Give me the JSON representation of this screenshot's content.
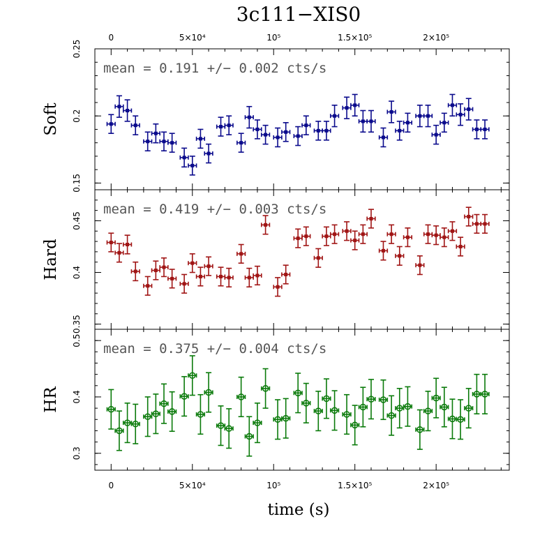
{
  "chart_data": {
    "type": "scatter",
    "title": "3c111−XIS0",
    "xlabel": "time (s)",
    "xlim": [
      -10000,
      245000
    ],
    "x_ticks": [
      {
        "value": 0,
        "label": "0"
      },
      {
        "value": 50000,
        "label": "5×10⁴"
      },
      {
        "value": 100000,
        "label": "10⁵"
      },
      {
        "value": 150000,
        "label": "1.5×10⁵"
      },
      {
        "value": 200000,
        "label": "2×10⁵"
      }
    ],
    "x_half_width": 2500,
    "x": [
      0,
      5000,
      10000,
      15000,
      22500,
      27500,
      32500,
      37500,
      45000,
      50000,
      55000,
      60000,
      67500,
      72500,
      80000,
      85000,
      90000,
      95000,
      102500,
      107500,
      115000,
      120000,
      127500,
      132500,
      137500,
      145000,
      150000,
      155000,
      160000,
      167500,
      172500,
      177500,
      182500,
      190000,
      195000,
      200000,
      205000,
      210000,
      215000,
      220000,
      225000,
      230000
    ],
    "panels": [
      {
        "ylabel": "Soft",
        "ylim": [
          0.145,
          0.25
        ],
        "yticks": [
          0.15,
          0.2,
          0.25
        ],
        "ytick_labels": [
          "0.15",
          "0.2",
          "0.25"
        ],
        "mean_text": "mean = 0.191 +/− 0.002 cts/s",
        "color": "#0a0a8c",
        "marker": "square",
        "values": [
          0.194,
          0.207,
          0.204,
          0.193,
          0.181,
          0.187,
          0.181,
          0.18,
          0.169,
          0.163,
          0.183,
          0.172,
          0.192,
          0.193,
          0.18,
          0.199,
          0.19,
          0.186,
          0.184,
          0.188,
          0.185,
          0.193,
          0.189,
          0.189,
          0.2,
          0.206,
          0.208,
          0.196,
          0.196,
          0.184,
          0.203,
          0.189,
          0.195,
          0.2,
          0.2,
          0.186,
          0.195,
          0.208,
          0.201,
          0.205,
          0.19,
          0.19
        ],
        "errors": [
          0.007,
          0.008,
          0.008,
          0.007,
          0.007,
          0.007,
          0.007,
          0.007,
          0.007,
          0.007,
          0.007,
          0.007,
          0.007,
          0.007,
          0.007,
          0.008,
          0.007,
          0.007,
          0.007,
          0.007,
          0.007,
          0.007,
          0.007,
          0.007,
          0.008,
          0.008,
          0.008,
          0.008,
          0.008,
          0.007,
          0.008,
          0.007,
          0.007,
          0.008,
          0.008,
          0.007,
          0.007,
          0.008,
          0.008,
          0.008,
          0.007,
          0.007
        ]
      },
      {
        "ylabel": "Hard",
        "ylim": [
          0.345,
          0.48
        ],
        "yticks": [
          0.35,
          0.4,
          0.45
        ],
        "ytick_labels": [
          "0.35",
          "0.4",
          "0.45"
        ],
        "mean_text": "mean = 0.419 +/− 0.003 cts/s",
        "color": "#a01414",
        "marker": "square",
        "values": [
          0.429,
          0.419,
          0.427,
          0.401,
          0.387,
          0.402,
          0.405,
          0.394,
          0.389,
          0.409,
          0.396,
          0.406,
          0.396,
          0.395,
          0.418,
          0.395,
          0.397,
          0.446,
          0.386,
          0.398,
          0.433,
          0.435,
          0.414,
          0.435,
          0.437,
          0.44,
          0.431,
          0.437,
          0.452,
          0.421,
          0.437,
          0.416,
          0.434,
          0.407,
          0.437,
          0.436,
          0.434,
          0.44,
          0.425,
          0.454,
          0.447,
          0.447
        ],
        "errors": [
          0.009,
          0.009,
          0.009,
          0.009,
          0.009,
          0.009,
          0.009,
          0.009,
          0.009,
          0.009,
          0.009,
          0.009,
          0.009,
          0.009,
          0.009,
          0.009,
          0.009,
          0.009,
          0.009,
          0.009,
          0.009,
          0.009,
          0.009,
          0.009,
          0.009,
          0.009,
          0.009,
          0.009,
          0.009,
          0.009,
          0.009,
          0.009,
          0.009,
          0.009,
          0.009,
          0.009,
          0.009,
          0.009,
          0.009,
          0.009,
          0.009,
          0.009
        ]
      },
      {
        "ylabel": "HR",
        "ylim": [
          0.27,
          0.52
        ],
        "yticks": [
          0.3,
          0.4,
          0.5
        ],
        "ytick_labels": [
          "0.3",
          "0.4",
          "0.5"
        ],
        "mean_text": "mean = 0.375 +/− 0.004 cts/s",
        "color": "#0a7a0a",
        "marker": "circle",
        "values": [
          0.378,
          0.34,
          0.354,
          0.352,
          0.365,
          0.37,
          0.388,
          0.374,
          0.401,
          0.438,
          0.369,
          0.408,
          0.349,
          0.344,
          0.4,
          0.33,
          0.354,
          0.415,
          0.36,
          0.362,
          0.407,
          0.389,
          0.375,
          0.397,
          0.376,
          0.369,
          0.35,
          0.382,
          0.396,
          0.395,
          0.367,
          0.38,
          0.383,
          0.342,
          0.375,
          0.398,
          0.382,
          0.361,
          0.36,
          0.38,
          0.405,
          0.405
        ],
        "errors": [
          0.035,
          0.035,
          0.035,
          0.035,
          0.035,
          0.035,
          0.035,
          0.035,
          0.035,
          0.035,
          0.035,
          0.035,
          0.035,
          0.035,
          0.035,
          0.035,
          0.035,
          0.035,
          0.035,
          0.035,
          0.035,
          0.035,
          0.035,
          0.035,
          0.035,
          0.035,
          0.035,
          0.035,
          0.035,
          0.035,
          0.035,
          0.035,
          0.035,
          0.035,
          0.035,
          0.035,
          0.035,
          0.035,
          0.035,
          0.035,
          0.035,
          0.035
        ]
      }
    ]
  }
}
